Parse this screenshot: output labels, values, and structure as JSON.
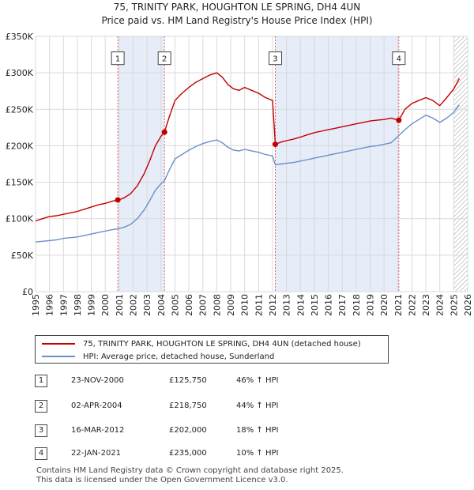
{
  "header": {
    "title": "75, TRINITY PARK, HOUGHTON LE SPRING, DH4 4UN",
    "subtitle": "Price paid vs. HM Land Registry's House Price Index (HPI)"
  },
  "colors": {
    "property": "#c00000",
    "hpi": "#6a8fc8",
    "shade": "#e6ecf8",
    "grid": "#d9d9d9",
    "marker_line": "#e06060"
  },
  "chart_data": {
    "type": "line",
    "title": "75, TRINITY PARK, HOUGHTON LE SPRING, DH4 4UN",
    "subtitle": "Price paid vs. HM Land Registry's House Price Index (HPI)",
    "xlabel": "",
    "ylabel": "",
    "xlim": [
      1995,
      2026
    ],
    "ylim": [
      0,
      350000
    ],
    "x_ticks": [
      "1995",
      "1996",
      "1997",
      "1998",
      "1999",
      "2000",
      "2001",
      "2002",
      "2003",
      "2004",
      "2005",
      "2006",
      "2007",
      "2008",
      "2009",
      "2010",
      "2011",
      "2012",
      "2013",
      "2014",
      "2015",
      "2016",
      "2017",
      "2018",
      "2019",
      "2020",
      "2021",
      "2022",
      "2023",
      "2024",
      "2025",
      "2026"
    ],
    "y_ticks": [
      {
        "value": 0,
        "label": "£0"
      },
      {
        "value": 50000,
        "label": "£50K"
      },
      {
        "value": 100000,
        "label": "£100K"
      },
      {
        "value": 150000,
        "label": "£150K"
      },
      {
        "value": 200000,
        "label": "£200K"
      },
      {
        "value": 250000,
        "label": "£250K"
      },
      {
        "value": 300000,
        "label": "£300K"
      },
      {
        "value": 350000,
        "label": "£350K"
      }
    ],
    "grid": true,
    "series": [
      {
        "name": "75, TRINITY PARK, HOUGHTON LE SPRING, DH4 4UN (detached house)",
        "x": [
          1995.0,
          1995.5,
          1996.0,
          1996.5,
          1997.0,
          1997.5,
          1998.0,
          1998.5,
          1999.0,
          1999.5,
          2000.0,
          2000.5,
          2000.9,
          2001.3,
          2001.8,
          2002.3,
          2002.8,
          2003.2,
          2003.6,
          2004.0,
          2004.25,
          2004.6,
          2005.0,
          2005.5,
          2006.0,
          2006.5,
          2007.0,
          2007.5,
          2008.0,
          2008.4,
          2008.8,
          2009.2,
          2009.6,
          2010.0,
          2010.5,
          2011.0,
          2011.5,
          2012.0,
          2012.2,
          2012.6,
          2013.0,
          2013.5,
          2014.0,
          2014.5,
          2015.0,
          2015.5,
          2016.0,
          2016.5,
          2017.0,
          2017.5,
          2018.0,
          2018.5,
          2019.0,
          2019.5,
          2020.0,
          2020.5,
          2021.06,
          2021.5,
          2022.0,
          2022.5,
          2023.0,
          2023.5,
          2024.0,
          2024.5,
          2025.0,
          2025.4
        ],
        "values": [
          97000,
          100000,
          103000,
          104000,
          106000,
          108000,
          110000,
          113000,
          116000,
          119000,
          121000,
          124000,
          125750,
          128000,
          134000,
          145000,
          162000,
          180000,
          200000,
          213000,
          218750,
          240000,
          262000,
          272000,
          280000,
          287000,
          292000,
          297000,
          300000,
          294000,
          284000,
          278000,
          276000,
          280000,
          276000,
          272000,
          266000,
          262000,
          202000,
          205000,
          207000,
          209000,
          212000,
          215000,
          218000,
          220000,
          222000,
          224000,
          226000,
          228000,
          230000,
          232000,
          234000,
          235000,
          236000,
          238000,
          235000,
          250000,
          258000,
          262000,
          266000,
          262000,
          255000,
          266000,
          278000,
          292000
        ]
      },
      {
        "name": "HPI: Average price, detached house, Sunderland",
        "x": [
          1995.0,
          1995.5,
          1996.0,
          1996.5,
          1997.0,
          1997.5,
          1998.0,
          1998.5,
          1999.0,
          1999.5,
          2000.0,
          2000.5,
          2000.9,
          2001.3,
          2001.8,
          2002.3,
          2002.8,
          2003.2,
          2003.6,
          2004.0,
          2004.25,
          2004.6,
          2005.0,
          2005.5,
          2006.0,
          2006.5,
          2007.0,
          2007.5,
          2008.0,
          2008.4,
          2008.8,
          2009.2,
          2009.6,
          2010.0,
          2010.5,
          2011.0,
          2011.5,
          2012.0,
          2012.2,
          2012.6,
          2013.0,
          2013.5,
          2014.0,
          2014.5,
          2015.0,
          2015.5,
          2016.0,
          2016.5,
          2017.0,
          2017.5,
          2018.0,
          2018.5,
          2019.0,
          2019.5,
          2020.0,
          2020.5,
          2021.06,
          2021.5,
          2022.0,
          2022.5,
          2023.0,
          2023.5,
          2024.0,
          2024.5,
          2025.0,
          2025.4
        ],
        "values": [
          68000,
          69000,
          70000,
          71000,
          73000,
          74000,
          75000,
          77000,
          79000,
          81000,
          83000,
          85000,
          86000,
          88000,
          92000,
          100000,
          112000,
          125000,
          139000,
          148000,
          152000,
          167000,
          182000,
          188000,
          194000,
          199000,
          203000,
          206000,
          208000,
          204000,
          198000,
          194000,
          193000,
          195000,
          193000,
          191000,
          188000,
          186000,
          174000,
          175000,
          176000,
          177000,
          179000,
          181000,
          183000,
          185000,
          187000,
          189000,
          191000,
          193000,
          195000,
          197000,
          199000,
          200000,
          202000,
          204000,
          214000,
          222000,
          230000,
          236000,
          242000,
          238000,
          232000,
          238000,
          246000,
          256000
        ]
      }
    ],
    "transactions": [
      {
        "id": "1",
        "x": 2000.9,
        "price": 125750,
        "date": "23-NOV-2000",
        "price_label": "£125,750",
        "hpi": "46% ↑ HPI"
      },
      {
        "id": "2",
        "x": 2004.25,
        "price": 218750,
        "date": "02-APR-2004",
        "price_label": "£218,750",
        "hpi": "44% ↑ HPI"
      },
      {
        "id": "3",
        "x": 2012.2,
        "price": 202000,
        "date": "16-MAR-2012",
        "price_label": "£202,000",
        "hpi": "18% ↑ HPI"
      },
      {
        "id": "4",
        "x": 2021.06,
        "price": 235000,
        "date": "22-JAN-2021",
        "price_label": "£235,000",
        "hpi": "10% ↑ HPI"
      }
    ],
    "shaded_ranges": [
      [
        2000.9,
        2004.25
      ],
      [
        2012.2,
        2021.06
      ]
    ],
    "future_hatch_from": 2025.0,
    "marker_label_price": 320000
  },
  "legend": {
    "property": "75, TRINITY PARK, HOUGHTON LE SPRING, DH4 4UN (detached house)",
    "hpi": "HPI: Average price, detached house, Sunderland"
  },
  "transactions_table": [
    {
      "id": "1",
      "date": "23-NOV-2000",
      "price": "£125,750",
      "hpi": "46% ↑ HPI"
    },
    {
      "id": "2",
      "date": "02-APR-2004",
      "price": "£218,750",
      "hpi": "44% ↑ HPI"
    },
    {
      "id": "3",
      "date": "16-MAR-2012",
      "price": "£202,000",
      "hpi": "18% ↑ HPI"
    },
    {
      "id": "4",
      "date": "22-JAN-2021",
      "price": "£235,000",
      "hpi": "10% ↑ HPI"
    }
  ],
  "footer": {
    "line1": "Contains HM Land Registry data © Crown copyright and database right 2025.",
    "line2": "This data is licensed under the Open Government Licence v3.0."
  }
}
